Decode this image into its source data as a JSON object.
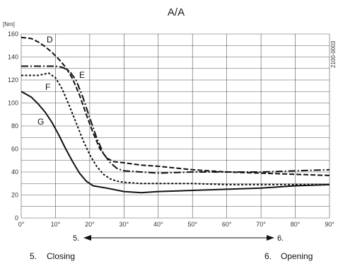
{
  "chart_data": {
    "type": "line",
    "title": "A/A",
    "ylabel": "[Nm]",
    "xlabel": "",
    "xlim": [
      0,
      90
    ],
    "ylim": [
      0,
      160
    ],
    "x_ticks": [
      "0°",
      "10°",
      "20°",
      "30°",
      "40°",
      "50°",
      "60°",
      "70°",
      "80°",
      "90°"
    ],
    "y_ticks": [
      "0",
      "20",
      "40",
      "60",
      "80",
      "100",
      "120",
      "140",
      "160"
    ],
    "grid": true,
    "series": [
      {
        "name": "D",
        "style": "dashed",
        "x": [
          0,
          3,
          5,
          7,
          9,
          11,
          13,
          15,
          17,
          19,
          21,
          23,
          25,
          27,
          30,
          35,
          40,
          50,
          60,
          70,
          80,
          90
        ],
        "y": [
          157,
          156,
          153,
          149,
          144,
          138,
          131,
          121,
          107,
          90,
          74,
          60,
          52,
          49,
          48,
          46,
          45,
          42,
          40,
          39,
          38,
          37
        ]
      },
      {
        "name": "E",
        "style": "dash-dot",
        "x": [
          0,
          5,
          10,
          12,
          14,
          16,
          18,
          20,
          22,
          24,
          26,
          28,
          30,
          35,
          40,
          50,
          60,
          70,
          80,
          90
        ],
        "y": [
          132,
          132,
          132,
          131,
          128,
          120,
          105,
          87,
          70,
          56,
          48,
          43,
          41,
          40,
          39,
          40,
          40,
          40,
          41,
          42
        ]
      },
      {
        "name": "F",
        "style": "dotted",
        "x": [
          0,
          5,
          8,
          10,
          12,
          14,
          16,
          18,
          20,
          22,
          24,
          26,
          28,
          30,
          35,
          40,
          50,
          60,
          70,
          80,
          90
        ],
        "y": [
          124,
          124,
          126,
          122,
          112,
          98,
          83,
          68,
          55,
          45,
          38,
          34,
          32,
          31,
          30,
          30,
          30,
          29,
          29,
          29,
          29
        ]
      },
      {
        "name": "G",
        "style": "solid",
        "x": [
          0,
          3,
          5,
          7,
          9,
          11,
          13,
          15,
          17,
          19,
          21,
          25,
          30,
          35,
          40,
          50,
          60,
          70,
          80,
          90
        ],
        "y": [
          110,
          105,
          99,
          92,
          83,
          72,
          60,
          49,
          39,
          32,
          28,
          26,
          23,
          22,
          23,
          24,
          25,
          26,
          28,
          29
        ]
      }
    ],
    "curve_labels": [
      "D",
      "E",
      "F",
      "G"
    ],
    "direction": {
      "start_label": "5.",
      "end_label": "6."
    },
    "legend": [
      {
        "number": "5.",
        "text": "Closing"
      },
      {
        "number": "6.",
        "text": "Opening"
      }
    ],
    "figure_code": "2100-0003"
  }
}
